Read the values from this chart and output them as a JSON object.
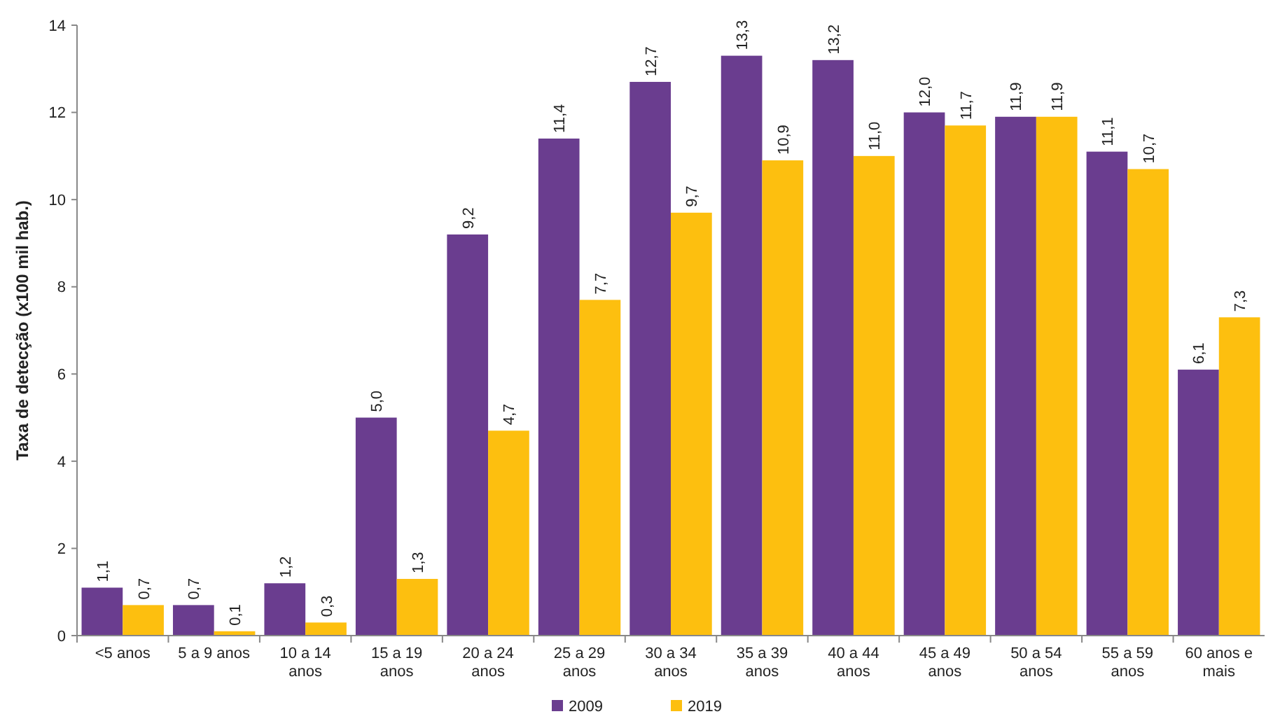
{
  "chart_data": {
    "type": "bar",
    "ylabel": "Taxa de detecção (x100 mil hab.)",
    "categories": [
      "<5 anos",
      "5 a 9 anos",
      "10 a 14 anos",
      "15 a 19 anos",
      "20 a 24 anos",
      "25 a 29 anos",
      "30 a 34 anos",
      "35 a 39 anos",
      "40 a 44 anos",
      "45 a 49 anos",
      "50 a 54 anos",
      "55 a 59 anos",
      "60 anos e mais"
    ],
    "series": [
      {
        "name": "2009",
        "color": "#6a3d8f",
        "values": [
          1.1,
          0.7,
          1.2,
          5.0,
          9.2,
          11.4,
          12.7,
          13.3,
          13.2,
          12.0,
          11.9,
          11.1,
          6.1
        ],
        "value_labels": [
          "1,1",
          "0,7",
          "1,2",
          "5,0",
          "9,2",
          "11,4",
          "12,7",
          "13,3",
          "13,2",
          "12,0",
          "11,9",
          "11,1",
          "6,1"
        ]
      },
      {
        "name": "2019",
        "color": "#fdbf0f",
        "values": [
          0.7,
          0.1,
          0.3,
          1.3,
          4.7,
          7.7,
          9.7,
          10.9,
          11.0,
          11.7,
          11.9,
          10.7,
          7.3
        ],
        "value_labels": [
          "0,7",
          "0,1",
          "0,3",
          "1,3",
          "4,7",
          "7,7",
          "9,7",
          "10,9",
          "11,0",
          "11,7",
          "11,9",
          "10,7",
          "7,3"
        ]
      }
    ],
    "ylim": [
      0,
      14
    ],
    "yticks": [
      0,
      2,
      4,
      6,
      8,
      10,
      12,
      14
    ],
    "legend": "bottom"
  }
}
